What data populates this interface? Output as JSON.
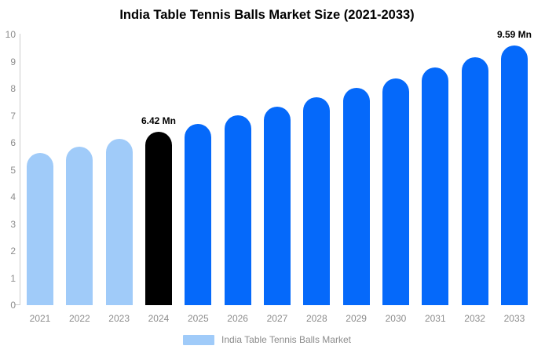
{
  "chart_data": {
    "type": "bar",
    "title": "India Table Tennis Balls Market Size (2021-2033)",
    "categories": [
      "2021",
      "2022",
      "2023",
      "2024",
      "2025",
      "2026",
      "2027",
      "2028",
      "2029",
      "2030",
      "2031",
      "2032",
      "2033"
    ],
    "values": [
      5.62,
      5.87,
      6.14,
      6.42,
      6.71,
      7.02,
      7.34,
      7.67,
      8.02,
      8.39,
      8.77,
      9.17,
      9.59
    ],
    "bar_roles": [
      "light",
      "light",
      "light",
      "highlight",
      "primary",
      "primary",
      "primary",
      "primary",
      "primary",
      "primary",
      "primary",
      "primary",
      "primary"
    ],
    "colors": {
      "light": "#A0CBF9",
      "highlight": "#000000",
      "primary": "#0569FA"
    },
    "annotations": [
      {
        "index": 3,
        "text": "6.42 Mn"
      },
      {
        "index": 12,
        "text": "9.59 Mn"
      }
    ],
    "xlabel": "",
    "ylabel": "",
    "ylim": [
      0,
      10
    ],
    "yticks": [
      0,
      1,
      2,
      3,
      4,
      5,
      6,
      7,
      8,
      9,
      10
    ],
    "grid": false,
    "legend_position": "bottom-center",
    "legend": {
      "label": "India Table Tennis Balls Market",
      "swatch_color": "#A0CBF9"
    },
    "axis_color": "#cccccc",
    "tick_label_color": "#8c8c8c",
    "background_color": "#ffffff"
  }
}
